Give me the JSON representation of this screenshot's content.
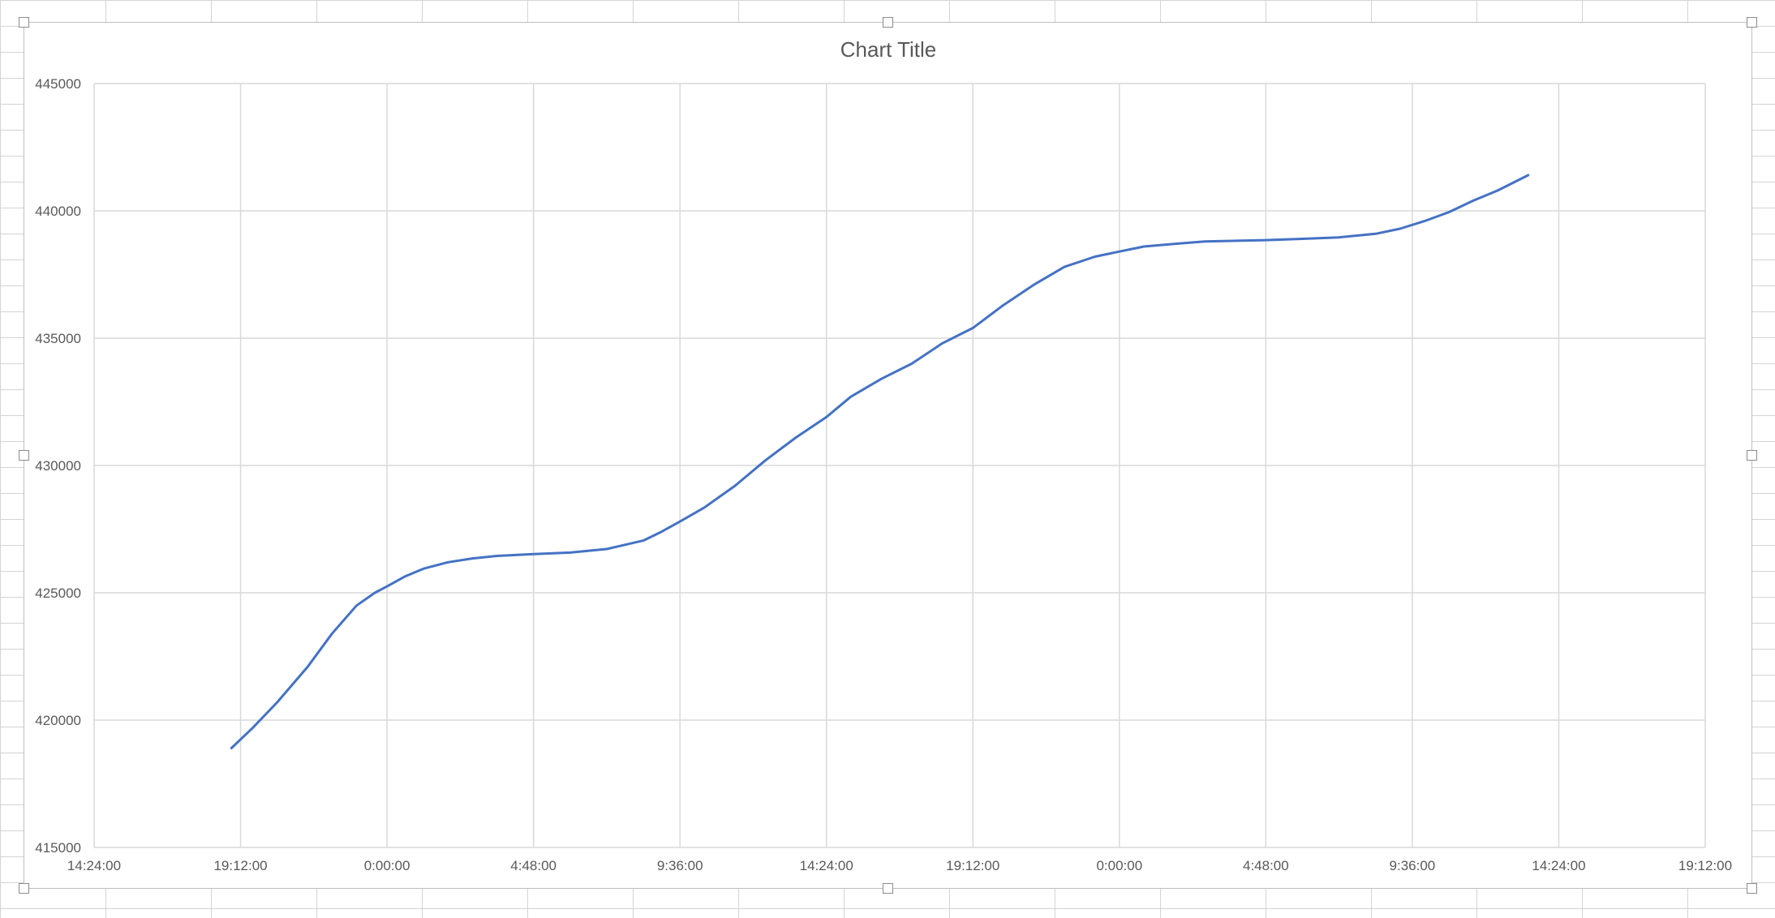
{
  "chart_data": {
    "type": "line",
    "title": "Chart Title",
    "xlabel": "",
    "ylabel": "",
    "ylim": [
      415000,
      445000
    ],
    "yticks": [
      415000,
      420000,
      425000,
      430000,
      435000,
      440000,
      445000
    ],
    "y_tick_labels": [
      "415000",
      "420000",
      "425000",
      "430000",
      "435000",
      "440000",
      "445000"
    ],
    "xlim": [
      "day1 14:24",
      "day3 19:12"
    ],
    "x_tick_labels": [
      "14:24:00",
      "19:12:00",
      "0:00:00",
      "4:48:00",
      "9:36:00",
      "14:24:00",
      "19:12:00",
      "0:00:00",
      "4:48:00",
      "9:36:00",
      "14:24:00",
      "19:12:00"
    ],
    "grid": true,
    "legend": "none",
    "line_color": "#4472c4",
    "series": [
      {
        "x": [
          "day1 18:54",
          "day1 19:36",
          "day1 20:24",
          "day1 21:24",
          "day1 22:12",
          "day1 23:00",
          "day1 23:36",
          "day2 00:00",
          "day2 00:36",
          "day2 01:12",
          "day2 02:00",
          "day2 02:48",
          "day2 03:36",
          "day2 04:48",
          "day2 06:00",
          "day2 07:12",
          "day2 08:24",
          "day2 09:00",
          "day2 09:36",
          "day2 10:24",
          "day2 11:24",
          "day2 12:24",
          "day2 13:24",
          "day2 14:24",
          "day2 15:12",
          "day2 16:12",
          "day2 17:12",
          "day2 18:12",
          "day2 19:12",
          "day2 20:12",
          "day2 21:12",
          "day2 22:12",
          "day2 23:12",
          "day3 00:00",
          "day3 00:48",
          "day3 01:48",
          "day3 02:48",
          "day3 04:48",
          "day3 06:00",
          "day3 07:12",
          "day3 08:24",
          "day3 09:12",
          "day3 10:00",
          "day3 10:48",
          "day3 11:36",
          "day3 12:24",
          "day3 13:24"
        ],
        "y": [
          418900,
          419700,
          420700,
          422100,
          423400,
          424500,
          425000,
          425250,
          425650,
          425950,
          426200,
          426350,
          426450,
          426520,
          426580,
          426720,
          427050,
          427400,
          427800,
          428350,
          429200,
          430200,
          431100,
          431900,
          432700,
          433400,
          434000,
          434800,
          435400,
          436300,
          437100,
          437800,
          438200,
          438400,
          438600,
          438700,
          438800,
          438850,
          438900,
          438960,
          439100,
          439300,
          439600,
          439950,
          440400,
          440800,
          441400
        ]
      }
    ]
  }
}
